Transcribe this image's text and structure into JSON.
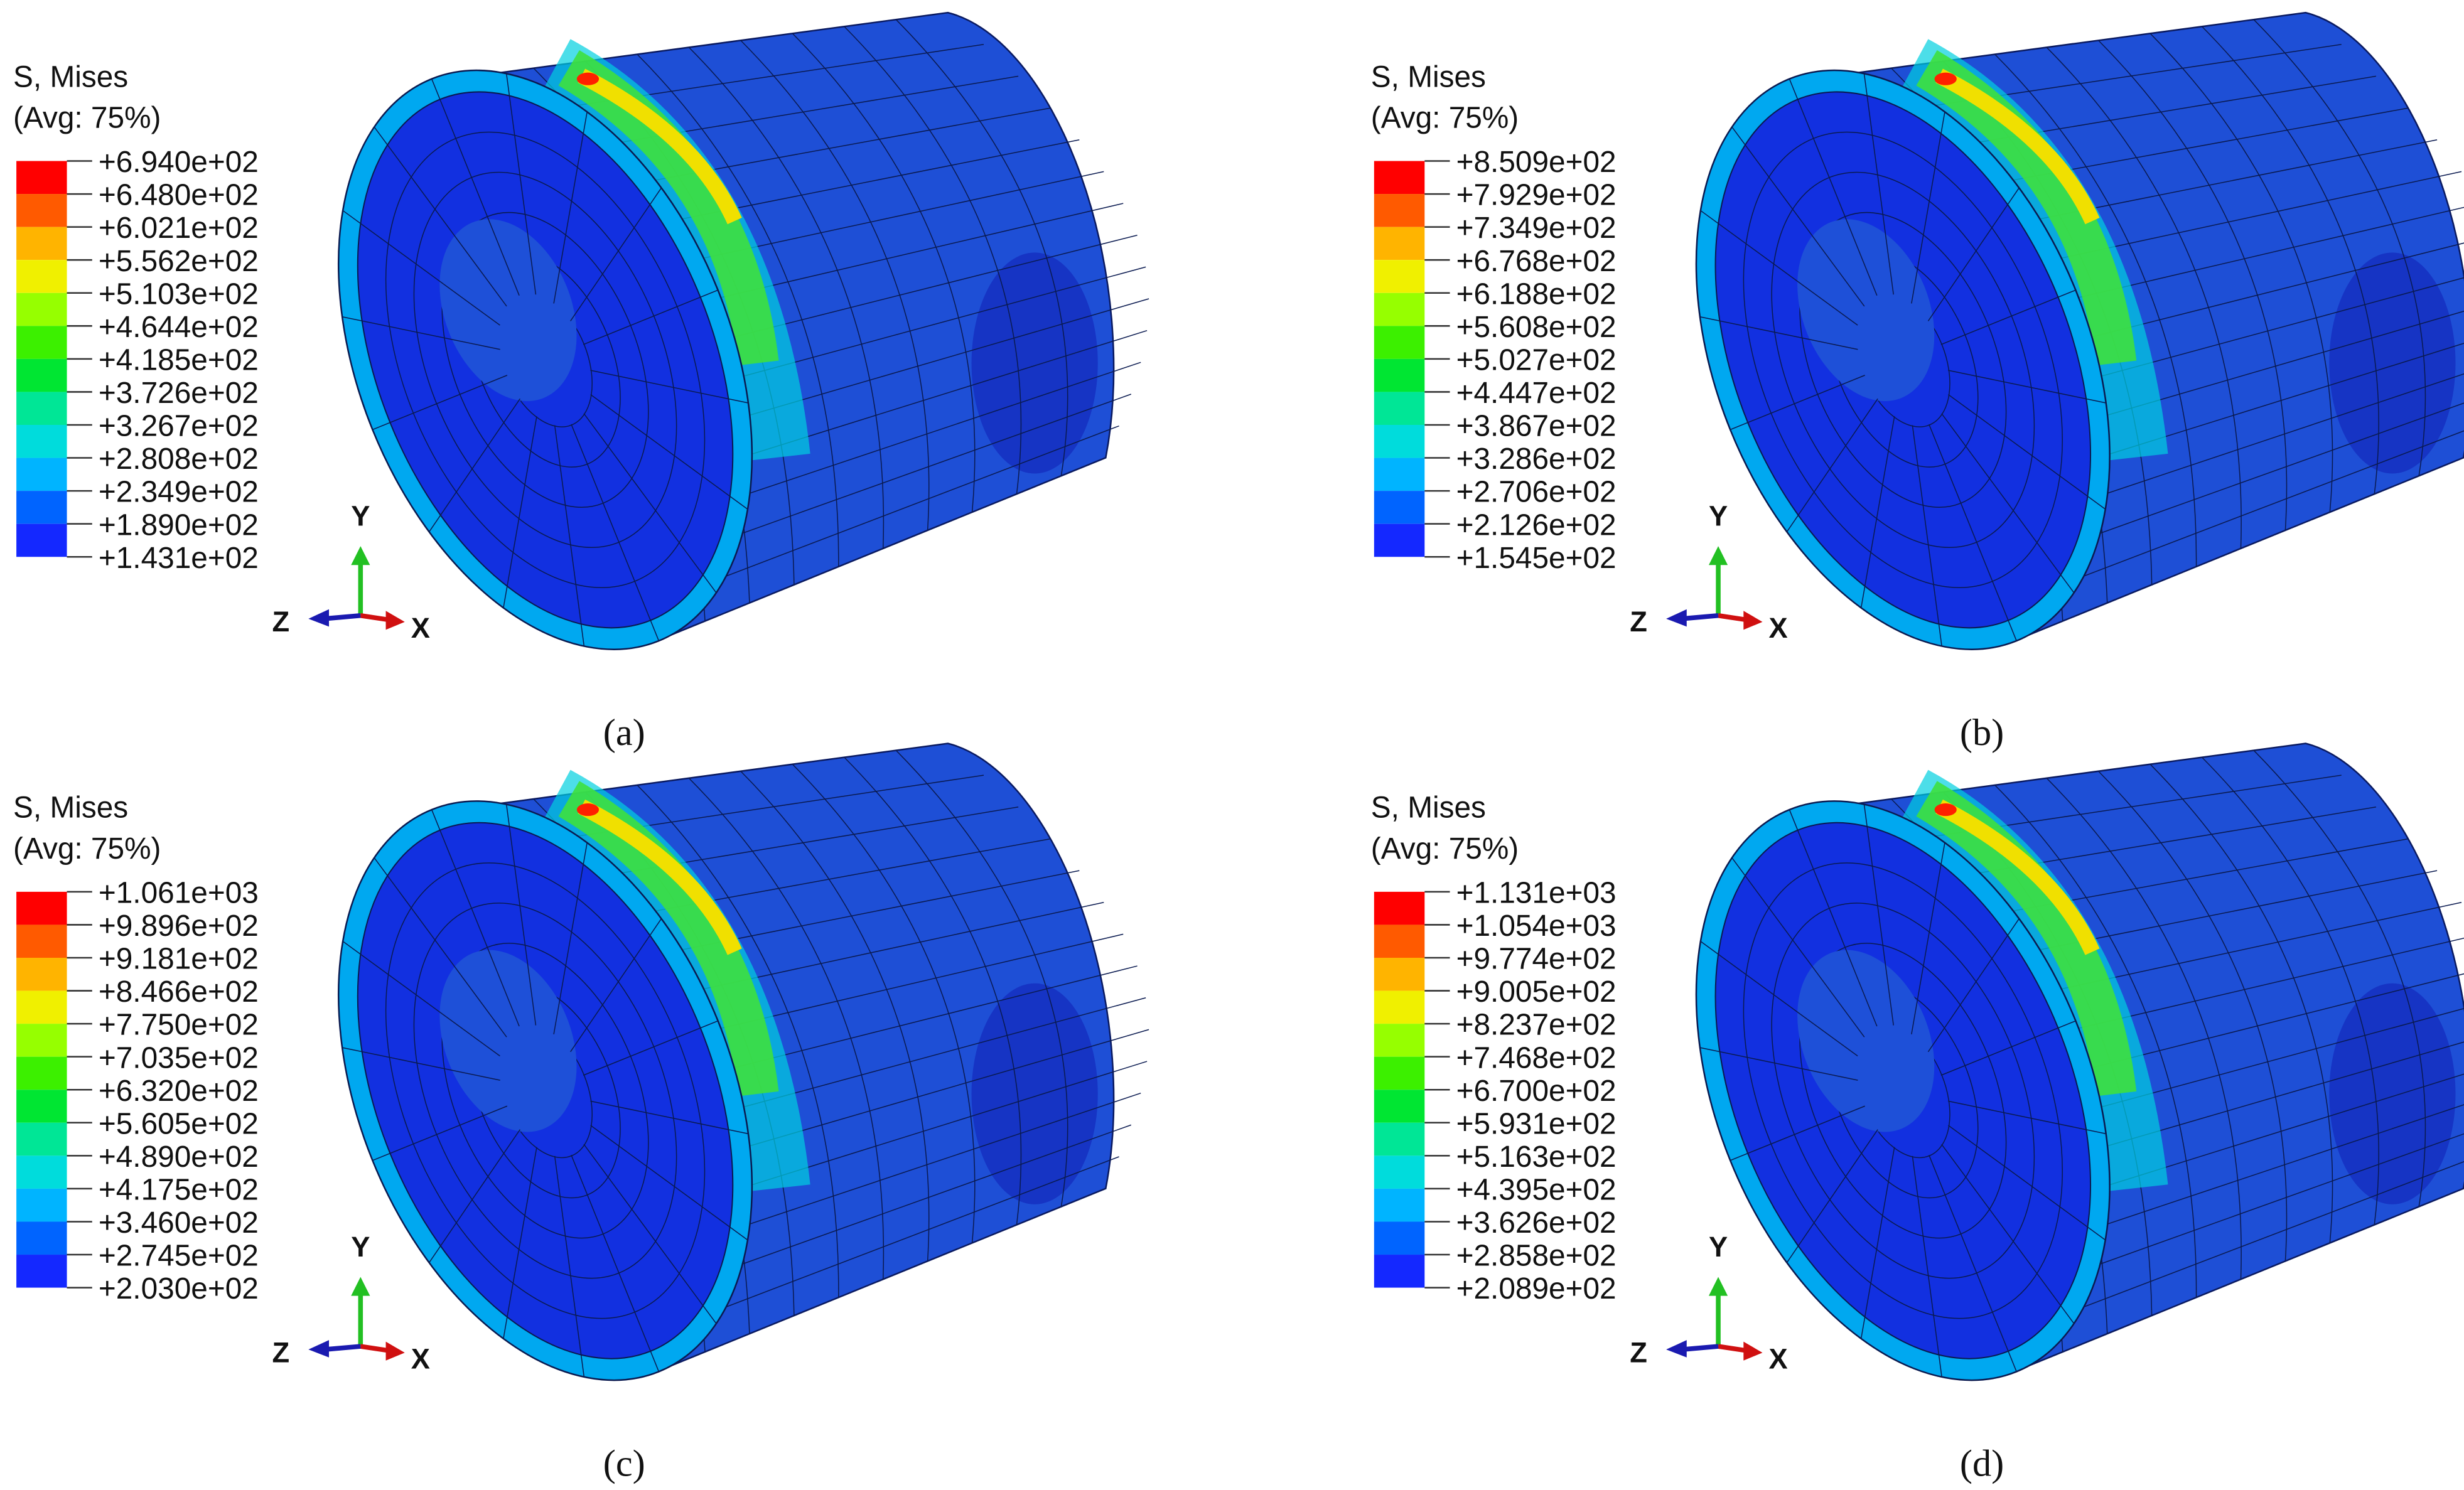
{
  "panels": [
    {
      "title": "S, Mises",
      "subtitle": "(Avg: 75%)",
      "legend": [
        "+6.940e+02",
        "+6.480e+02",
        "+6.021e+02",
        "+5.562e+02",
        "+5.103e+02",
        "+4.644e+02",
        "+4.185e+02",
        "+3.726e+02",
        "+3.267e+02",
        "+2.808e+02",
        "+2.349e+02",
        "+1.890e+02",
        "+1.431e+02"
      ],
      "axes": {
        "y": "Y",
        "z": "Z",
        "x": "X"
      },
      "caption": "(a)"
    },
    {
      "title": "S, Mises",
      "subtitle": "(Avg: 75%)",
      "legend": [
        "+8.509e+02",
        "+7.929e+02",
        "+7.349e+02",
        "+6.768e+02",
        "+6.188e+02",
        "+5.608e+02",
        "+5.027e+02",
        "+4.447e+02",
        "+3.867e+02",
        "+3.286e+02",
        "+2.706e+02",
        "+2.126e+02",
        "+1.545e+02"
      ],
      "axes": {
        "y": "Y",
        "z": "Z",
        "x": "X"
      },
      "caption": "(b)"
    },
    {
      "title": "S, Mises",
      "subtitle": "(Avg: 75%)",
      "legend": [
        "+1.061e+03",
        "+9.896e+02",
        "+9.181e+02",
        "+8.466e+02",
        "+7.750e+02",
        "+7.035e+02",
        "+6.320e+02",
        "+5.605e+02",
        "+4.890e+02",
        "+4.175e+02",
        "+3.460e+02",
        "+2.745e+02",
        "+2.030e+02"
      ],
      "axes": {
        "y": "Y",
        "z": "Z",
        "x": "X"
      },
      "caption": "(c)"
    },
    {
      "title": "S, Mises",
      "subtitle": "(Avg: 75%)",
      "legend": [
        "+1.131e+03",
        "+1.054e+03",
        "+9.774e+02",
        "+9.005e+02",
        "+8.237e+02",
        "+7.468e+02",
        "+6.700e+02",
        "+5.931e+02",
        "+5.163e+02",
        "+4.395e+02",
        "+3.626e+02",
        "+2.858e+02",
        "+2.089e+02"
      ],
      "axes": {
        "y": "Y",
        "z": "Z",
        "x": "X"
      },
      "caption": "(d)"
    }
  ]
}
